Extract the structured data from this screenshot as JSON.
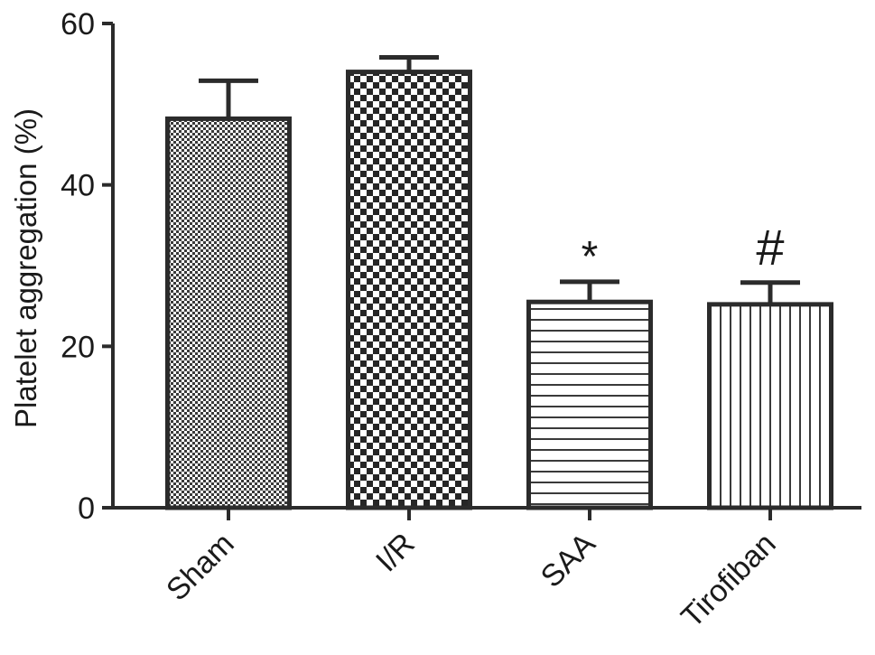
{
  "chart_data": {
    "type": "bar",
    "title": "",
    "xlabel": "",
    "ylabel": "Platelet aggregation (%)",
    "ylim": [
      0,
      60
    ],
    "yticks": [
      0,
      20,
      40,
      60
    ],
    "categories": [
      "Sham",
      "I/R",
      "SAA",
      "Tirofiban"
    ],
    "values": [
      48.2,
      54.0,
      25.5,
      25.2
    ],
    "errors": [
      4.7,
      1.8,
      2.5,
      2.7
    ],
    "annotations": [
      "",
      "",
      "*",
      "#"
    ],
    "patterns": [
      "fine-dots",
      "checker",
      "horizontal-lines",
      "vertical-lines"
    ],
    "grid": false,
    "legend": "none",
    "bar_stroke_color": "#2b2b2b"
  }
}
